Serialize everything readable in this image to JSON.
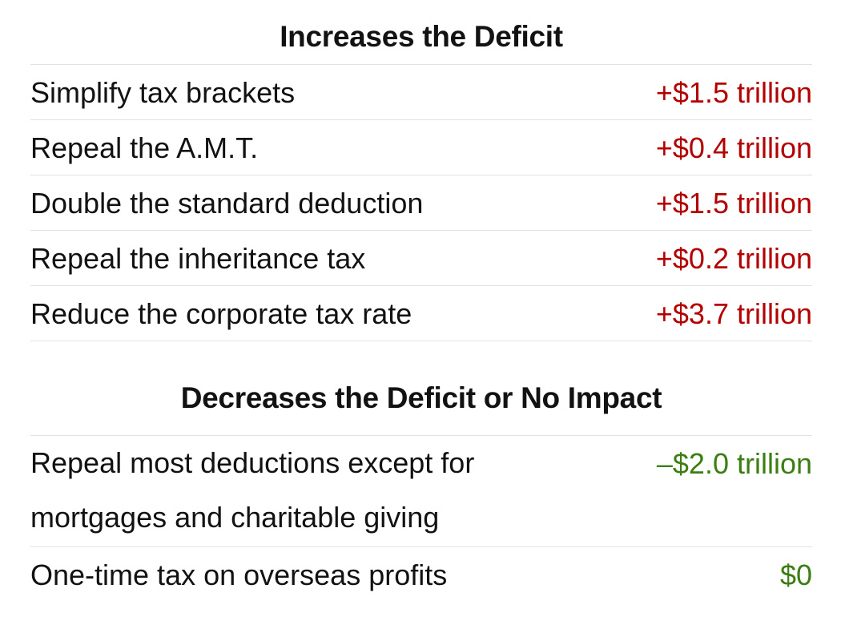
{
  "increases": {
    "title": "Increases the Deficit",
    "rows": [
      {
        "label": "Simplify tax brackets",
        "value": "+$1.5 trillion"
      },
      {
        "label": "Repeal the A.M.T.",
        "value": "+$0.4 trillion"
      },
      {
        "label": "Double the standard deduction",
        "value": "+$1.5 trillion"
      },
      {
        "label": "Repeal the inheritance tax",
        "value": "+$0.2 trillion"
      },
      {
        "label": "Reduce the corporate tax rate",
        "value": "+$3.7 trillion"
      }
    ]
  },
  "decreases": {
    "title": "Decreases the Deficit or No Impact",
    "rows": [
      {
        "label": "Repeal most deductions except for mortgages and charitable giving",
        "value": "–$2.0 trillion"
      },
      {
        "label": "One-time tax on overseas profits",
        "value": "$0"
      }
    ]
  },
  "colors": {
    "increase": "#b30000",
    "decrease": "#3c7d14",
    "rule": "#e2e2e2",
    "text": "#121212"
  }
}
